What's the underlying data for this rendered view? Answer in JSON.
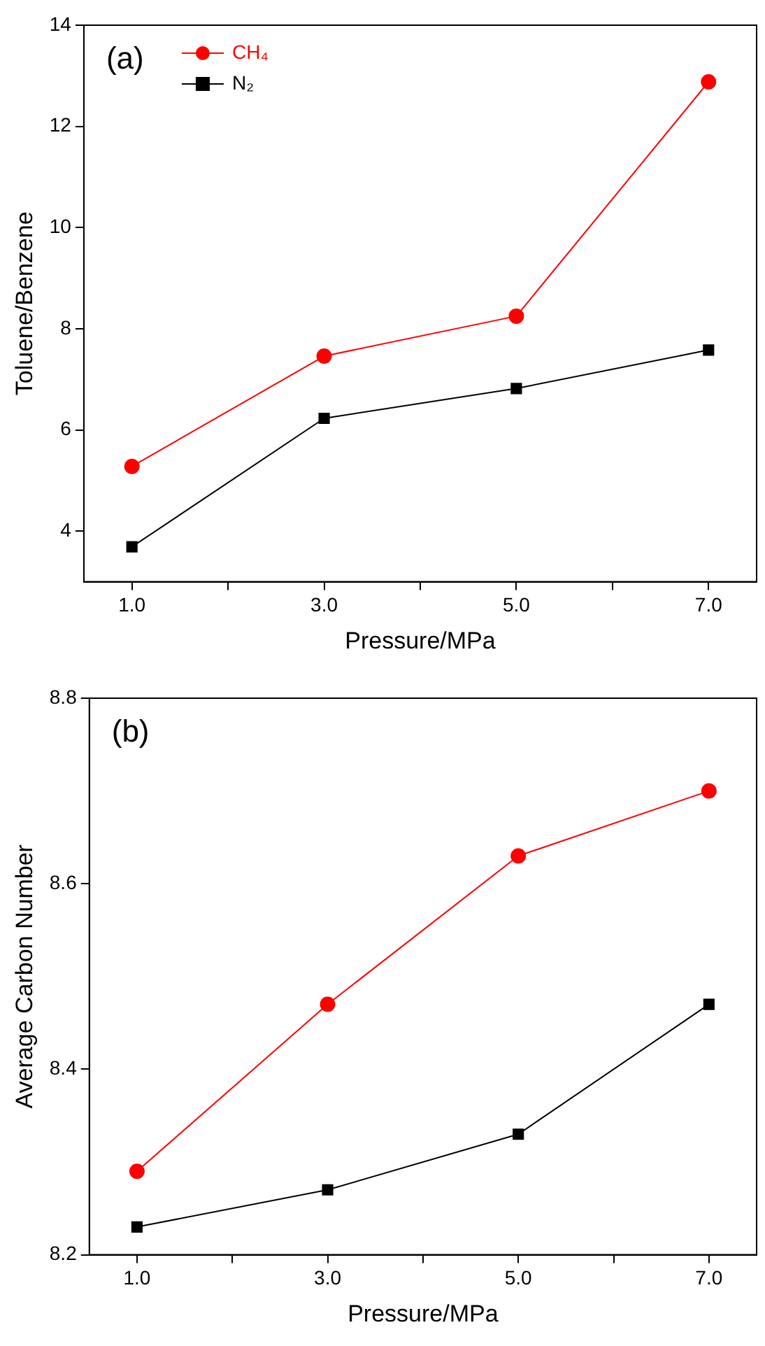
{
  "chart_data": [
    {
      "type": "line",
      "xlabel": "Pressure/MPa",
      "ylabel": "Toluene/Benzene",
      "annotations": [
        "(a)"
      ],
      "x": [
        1,
        3,
        5,
        7
      ],
      "series": [
        {
          "name": "CH₄",
          "color": "#ff0000",
          "marker": "circle",
          "values": [
            5.28,
            7.46,
            8.25,
            12.88
          ]
        },
        {
          "name": "N₂",
          "color": "#000000",
          "marker": "square",
          "values": [
            3.69,
            6.23,
            6.82,
            7.58
          ]
        }
      ],
      "xlim": [
        0.5,
        7.5
      ],
      "xticks": [
        {
          "value": 1,
          "label": "1.0"
        },
        {
          "value": 2,
          "label": null
        },
        {
          "value": 3,
          "label": "3.0"
        },
        {
          "value": 4,
          "label": null
        },
        {
          "value": 5,
          "label": "5.0"
        },
        {
          "value": 6,
          "label": null
        },
        {
          "value": 7,
          "label": "7.0"
        }
      ],
      "ylim": [
        3,
        14
      ],
      "yticks": [
        4,
        6,
        8,
        10,
        12,
        14
      ],
      "grid": false,
      "legend": "top left"
    },
    {
      "type": "line",
      "xlabel": "Pressure/MPa",
      "ylabel": "Average Carbon Number",
      "annotations": [
        "(b)"
      ],
      "x": [
        1,
        3,
        5,
        7
      ],
      "series": [
        {
          "color": "#ff0000",
          "marker": "circle",
          "values": [
            8.29,
            8.47,
            8.63,
            8.7
          ]
        },
        {
          "color": "#000000",
          "marker": "square",
          "values": [
            8.23,
            8.27,
            8.33,
            8.47
          ]
        }
      ],
      "xlim": [
        0.5,
        7.5
      ],
      "xticks": [
        {
          "value": 1,
          "label": "1.0"
        },
        {
          "value": 2,
          "label": null
        },
        {
          "value": 3,
          "label": "3.0"
        },
        {
          "value": 4,
          "label": null
        },
        {
          "value": 5,
          "label": "5.0"
        },
        {
          "value": 6,
          "label": null
        },
        {
          "value": 7,
          "label": "7.0"
        }
      ],
      "ylim": [
        8.2,
        8.8
      ],
      "yticks": [
        8.2,
        8.4,
        8.6,
        8.8
      ],
      "grid": false,
      "legend": false
    }
  ]
}
